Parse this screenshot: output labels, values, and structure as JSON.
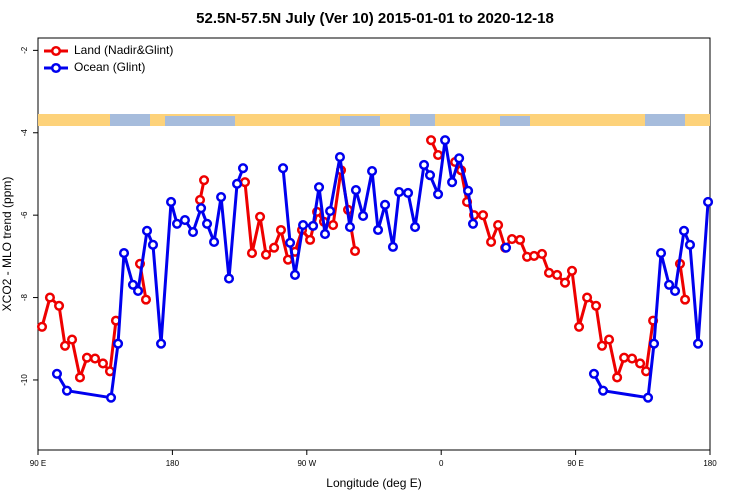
{
  "chart_data": {
    "type": "line",
    "title": "52.5N-57.5N July (Ver 10)   2015-01-01 to 2020-12-18",
    "xlabel": "Longitude (deg E)",
    "ylabel": "XCO2 - MLO trend (ppm)",
    "xlim": [
      90,
      540
    ],
    "ylim": [
      -11.7,
      -1.7
    ],
    "xticks": [
      {
        "value": 90,
        "label": "90 E"
      },
      180,
      {
        "value": 270,
        "label": "90 W"
      },
      {
        "value": 360,
        "label": "0"
      },
      {
        "value": 450,
        "label": "90 E"
      },
      {
        "value": 540,
        "label": "180"
      }
    ],
    "yticks": [
      -2,
      -4,
      -6,
      -8,
      -10
    ],
    "legend": "top-left",
    "series": [
      {
        "name": "Land (Nadir&Glint)",
        "color": "#ee0000",
        "x": [
          92.7,
          98.0,
          104.1,
          108.1,
          112.8,
          118.1,
          122.8,
          128.2,
          133.5,
          138.2,
          142.2,
          null,
          158.3,
          162.3,
          null,
          198.5,
          201.2,
          null,
          228.6,
          233.3,
          238.7,
          242.7,
          248.1,
          252.7,
          257.4,
          262.1,
          266.8,
          272.2,
          276.9,
          281.5,
          287.6,
          292.9,
          297.6,
          302.3,
          null,
          353.2,
          357.9,
          null,
          369.3,
          373.3,
          377.3,
          382.0,
          388.0,
          393.4,
          398.1,
          402.8,
          407.4,
          412.8,
          417.5,
          422.2,
          427.5,
          432.2,
          437.6,
          442.9,
          447.6,
          452.3,
          457.7,
          463.7,
          467.7,
          472.4,
          477.8,
          482.5,
          487.8,
          493.2,
          497.2,
          501.9,
          null,
          519.9,
          523.3
        ],
        "values": [
          -8.71,
          -8.0,
          -8.2,
          -9.17,
          -9.02,
          -9.94,
          -9.46,
          -9.48,
          -9.6,
          -9.79,
          -8.56,
          null,
          -7.18,
          -8.05,
          null,
          -5.63,
          -5.15,
          null,
          -5.2,
          -6.92,
          -6.04,
          -6.96,
          -6.79,
          -6.36,
          -7.08,
          -6.89,
          -6.36,
          -6.6,
          -5.92,
          -6.16,
          -6.24,
          -4.91,
          -5.87,
          -6.87,
          null,
          -4.18,
          -4.54,
          null,
          -4.71,
          -4.91,
          -5.68,
          -6.0,
          -6.0,
          -6.65,
          -6.24,
          -6.79,
          -6.58,
          -6.6,
          -7.01,
          -6.99,
          -6.94,
          -7.4,
          -7.45,
          -7.64,
          -7.35,
          -8.71,
          -8.0,
          -8.2,
          -9.17,
          -9.02,
          -9.94,
          -9.46,
          -9.48,
          -9.6,
          -9.79,
          -8.56,
          null,
          -7.18,
          -8.05
        ]
      },
      {
        "name": "Ocean (Glint)",
        "color": "#0000ee",
        "x": [
          102.7,
          109.4,
          138.9,
          143.6,
          147.6,
          153.6,
          157.0,
          163.0,
          167.0,
          172.4,
          179.1,
          183.1,
          188.4,
          193.8,
          199.2,
          203.2,
          207.9,
          212.6,
          217.9,
          223.3,
          227.3,
          null,
          254.1,
          258.8,
          262.1,
          267.5,
          274.2,
          278.2,
          282.2,
          285.6,
          292.2,
          298.9,
          302.9,
          307.7,
          313.7,
          317.7,
          322.4,
          327.7,
          331.8,
          337.8,
          342.5,
          348.5,
          352.5,
          357.9,
          362.6,
          367.3,
          372.0,
          378.0,
          381.3,
          null,
          403.4,
          null,
          462.3,
          468.4,
          498.5,
          502.5,
          507.2,
          512.6,
          516.6,
          522.6,
          526.6,
          532.0,
          538.7
        ],
        "values": [
          -9.85,
          -10.26,
          -10.43,
          -9.12,
          -6.92,
          -7.69,
          -7.84,
          -6.38,
          -6.72,
          -9.12,
          -5.68,
          -6.21,
          -6.12,
          -6.41,
          -5.83,
          -6.21,
          -6.65,
          -5.56,
          -7.54,
          -5.24,
          -4.86,
          null,
          -4.86,
          -6.67,
          -7.45,
          -6.24,
          -6.26,
          -5.32,
          -6.46,
          -5.9,
          -4.59,
          -6.29,
          -5.39,
          -6.02,
          -4.93,
          -6.36,
          -5.75,
          -6.77,
          -5.44,
          -5.46,
          -6.29,
          -4.78,
          -5.03,
          -5.49,
          -4.18,
          -5.2,
          -4.62,
          -5.41,
          -6.21,
          null,
          -6.79,
          null,
          -9.85,
          -10.26,
          -10.43,
          -9.12,
          -6.92,
          -7.69,
          -7.84,
          -6.38,
          -6.72,
          -9.12,
          -5.68
        ]
      }
    ]
  }
}
